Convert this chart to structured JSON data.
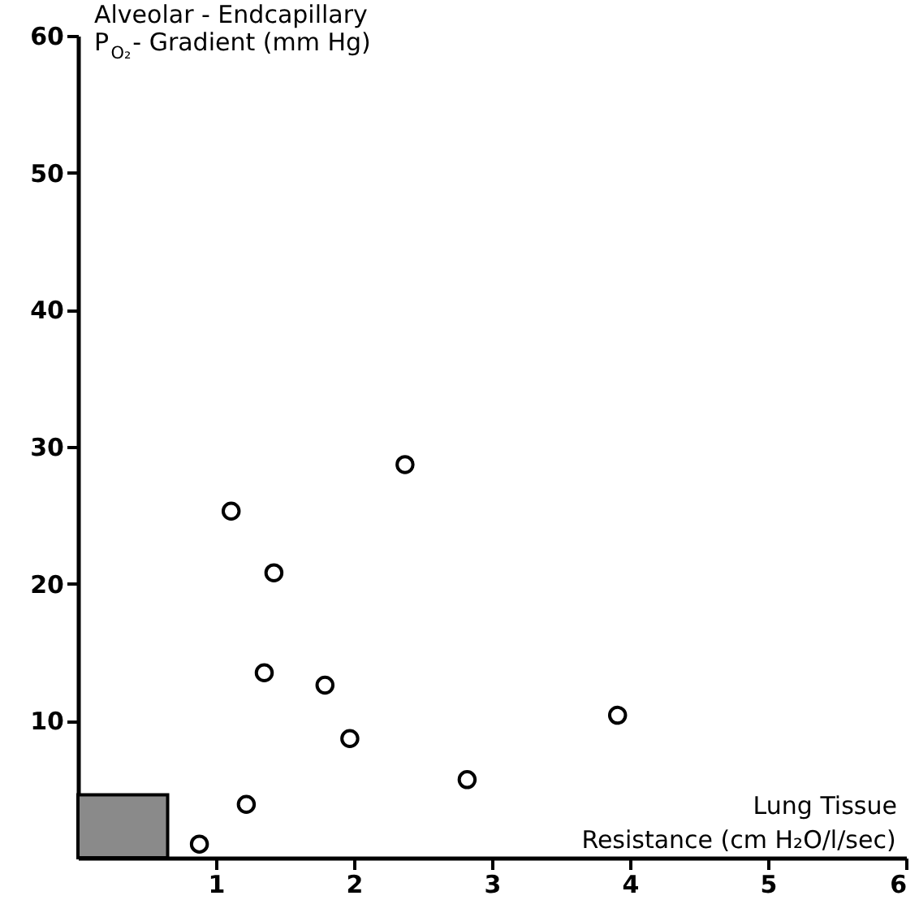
{
  "chart_data": {
    "type": "scatter",
    "xlabel": "Lung Tissue\nResistance (cm H₂O/l/sec)",
    "ylabel": "Alveolar - Endcapillary\nP$_{O₂}$- Gradient (mm Hg)",
    "xlim": [
      0,
      6
    ],
    "xticks": [
      1,
      2,
      3,
      4,
      5,
      6
    ],
    "ylim": [
      0,
      60
    ],
    "yticks": [
      10,
      20,
      30,
      40,
      50,
      60
    ],
    "grid": false,
    "series": [
      {
        "type": "area",
        "color": "#8a8a8a",
        "x": [
          0,
          0.65
        ],
        "values": [
          4.6,
          4.6
        ]
      },
      {
        "color": "#000000",
        "marker": "circle",
        "x": [
          0.88,
          1.22,
          1.11,
          2.37,
          1.42,
          1.35,
          1.79,
          1.97,
          3.91,
          2.82
        ],
        "values": [
          1.0,
          3.9,
          25.3,
          28.7,
          20.8,
          13.5,
          12.6,
          8.7,
          10.4,
          5.7
        ]
      }
    ]
  }
}
